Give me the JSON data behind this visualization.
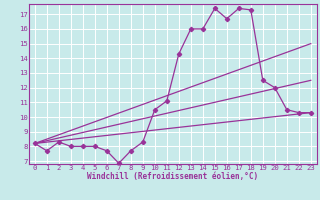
{
  "xlabel": "Windchill (Refroidissement éolien,°C)",
  "bg_color": "#c8eaea",
  "line_color": "#993399",
  "grid_color": "#ffffff",
  "xlim": [
    -0.5,
    23.5
  ],
  "ylim": [
    6.8,
    17.7
  ],
  "xticks": [
    0,
    1,
    2,
    3,
    4,
    5,
    6,
    7,
    8,
    9,
    10,
    11,
    12,
    13,
    14,
    15,
    16,
    17,
    18,
    19,
    20,
    21,
    22,
    23
  ],
  "yticks": [
    7,
    8,
    9,
    10,
    11,
    12,
    13,
    14,
    15,
    16,
    17
  ],
  "line1_x": [
    0,
    1,
    2,
    3,
    4,
    5,
    6,
    7,
    8,
    9,
    10,
    11,
    12,
    13,
    14,
    15,
    16,
    17,
    18,
    19,
    20,
    21,
    22,
    23
  ],
  "line1_y": [
    8.2,
    7.7,
    8.3,
    8.0,
    8.0,
    8.0,
    7.7,
    6.85,
    7.7,
    8.3,
    10.5,
    11.1,
    14.3,
    16.0,
    16.0,
    17.4,
    16.7,
    17.4,
    17.3,
    12.5,
    12.0,
    10.5,
    10.3,
    10.3
  ],
  "line2_x": [
    0,
    23
  ],
  "line2_y": [
    8.2,
    15.0
  ],
  "line3_x": [
    0,
    23
  ],
  "line3_y": [
    8.2,
    12.5
  ],
  "line4_x": [
    0,
    23
  ],
  "line4_y": [
    8.2,
    10.3
  ]
}
